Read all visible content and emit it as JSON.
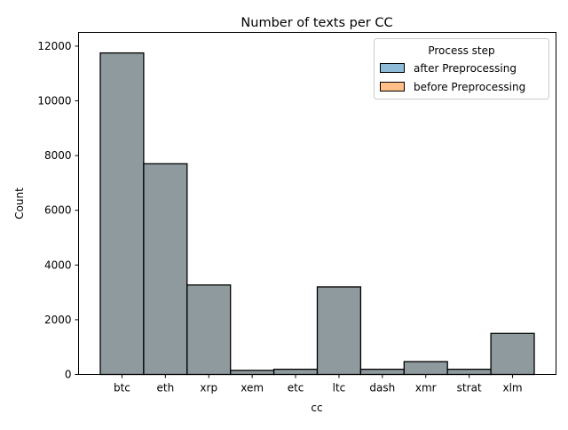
{
  "chart_data": {
    "type": "bar",
    "title": "Number of texts per CC",
    "xlabel": "cc",
    "ylabel": "Count",
    "categories": [
      "btc",
      "eth",
      "xrp",
      "xem",
      "etc",
      "ltc",
      "dash",
      "xmr",
      "strat",
      "xlm"
    ],
    "series": [
      {
        "name": "after Preprocessing",
        "color": "#1f77b4",
        "values": [
          11750,
          7700,
          3270,
          150,
          190,
          3200,
          190,
          470,
          190,
          1500
        ]
      },
      {
        "name": "before Preprocessing",
        "color": "#ff7f0e",
        "values": [
          11750,
          7700,
          3270,
          150,
          190,
          3200,
          190,
          470,
          190,
          1500
        ]
      }
    ],
    "overlap_color": "#8f9a9e",
    "ylim": [
      0,
      12500
    ],
    "yticks": [
      0,
      2000,
      4000,
      6000,
      8000,
      10000,
      12000
    ],
    "grid": false,
    "legend": {
      "title": "Process step",
      "position": "top-right"
    }
  }
}
